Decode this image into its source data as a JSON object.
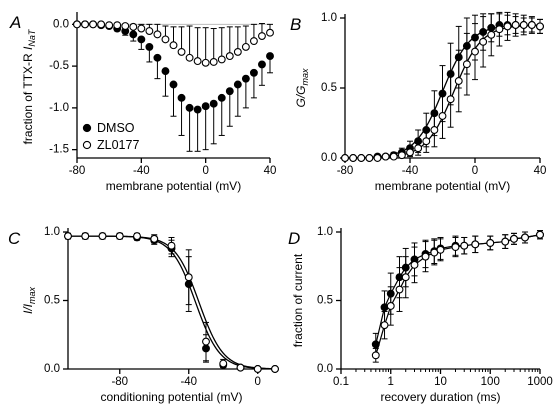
{
  "chart_data": [
    {
      "panel": "A",
      "type": "scatter",
      "ylabel_parts": [
        "fraction of TTX-R ",
        "I",
        "NaT"
      ],
      "xlabel": "membrane potential (mV)",
      "xlim": [
        -80,
        40
      ],
      "ylim": [
        -1.6,
        0.1
      ],
      "xticks": [
        -80,
        -40,
        0,
        40
      ],
      "yticks": [
        0.0,
        -0.5,
        -1.0,
        -1.5
      ],
      "xtick_labels": [
        "-80",
        "-40",
        "0",
        "40"
      ],
      "ytick_labels": [
        "0.0",
        "-0.5",
        "-1.0",
        "-1.5"
      ],
      "legend": {
        "position": "bottom-left",
        "entries": [
          "DMSO",
          "ZL0177"
        ]
      },
      "x": [
        -80,
        -75,
        -70,
        -65,
        -60,
        -55,
        -50,
        -45,
        -40,
        -35,
        -30,
        -25,
        -20,
        -15,
        -10,
        -5,
        0,
        5,
        10,
        15,
        20,
        25,
        30,
        35,
        40
      ],
      "series": [
        {
          "name": "DMSO",
          "marker": "filled",
          "errorbar_dir": "down",
          "values": [
            0.0,
            0.0,
            0.0,
            -0.01,
            -0.02,
            -0.05,
            -0.08,
            -0.12,
            -0.18,
            -0.27,
            -0.4,
            -0.56,
            -0.72,
            -0.88,
            -1.0,
            -1.02,
            -0.98,
            -0.95,
            -0.88,
            -0.8,
            -0.72,
            -0.65,
            -0.58,
            -0.48,
            -0.38
          ],
          "errors": [
            0.0,
            0.0,
            0.01,
            0.01,
            0.02,
            0.03,
            0.05,
            0.08,
            0.12,
            0.18,
            0.25,
            0.3,
            0.38,
            0.45,
            0.52,
            0.5,
            0.52,
            0.48,
            0.45,
            0.42,
            0.38,
            0.35,
            0.3,
            0.25,
            0.2
          ]
        },
        {
          "name": "ZL0177",
          "marker": "open",
          "errorbar_dir": "up",
          "values": [
            0.0,
            0.0,
            0.0,
            0.0,
            -0.01,
            -0.01,
            -0.02,
            -0.03,
            -0.05,
            -0.08,
            -0.12,
            -0.18,
            -0.25,
            -0.33,
            -0.4,
            -0.44,
            -0.46,
            -0.45,
            -0.42,
            -0.38,
            -0.33,
            -0.27,
            -0.2,
            -0.14,
            -0.1
          ],
          "errors": [
            0.0,
            0.0,
            0.0,
            0.01,
            0.01,
            0.02,
            0.02,
            0.03,
            0.05,
            0.08,
            0.12,
            0.16,
            0.22,
            0.3,
            0.38,
            0.4,
            0.42,
            0.4,
            0.38,
            0.35,
            0.3,
            0.25,
            0.2,
            0.15,
            0.1
          ]
        }
      ]
    },
    {
      "panel": "B",
      "type": "scatter",
      "ylabel_parts": [
        "G/G",
        "max"
      ],
      "xlabel": "membrane potential (mV)",
      "xlim": [
        -80,
        40
      ],
      "ylim": [
        0,
        1.0
      ],
      "xticks": [
        -80,
        -40,
        0,
        40
      ],
      "yticks": [
        0.0,
        0.5,
        1.0
      ],
      "xtick_labels": [
        "-80",
        "-40",
        "0",
        "40"
      ],
      "ytick_labels": [
        "0.0",
        "0.5",
        "1.0"
      ],
      "fits": [
        {
          "series": "DMSO",
          "v_half": -20,
          "slope": 8.5
        },
        {
          "series": "ZL0177",
          "v_half": -13,
          "slope": 8.5
        }
      ],
      "x": [
        -80,
        -75,
        -70,
        -65,
        -60,
        -55,
        -50,
        -45,
        -40,
        -35,
        -30,
        -25,
        -20,
        -15,
        -10,
        -5,
        0,
        5,
        10,
        15,
        20,
        25,
        30,
        35,
        40
      ],
      "series": [
        {
          "name": "DMSO",
          "marker": "filled",
          "values": [
            0.0,
            0.0,
            0.0,
            0.0,
            0.01,
            0.01,
            0.02,
            0.04,
            0.07,
            0.12,
            0.2,
            0.32,
            0.46,
            0.6,
            0.72,
            0.8,
            0.86,
            0.9,
            0.93,
            0.95,
            0.95,
            0.95,
            0.95,
            0.95,
            0.94
          ],
          "errors": [
            0.0,
            0.0,
            0.0,
            0.01,
            0.01,
            0.01,
            0.02,
            0.03,
            0.05,
            0.08,
            0.12,
            0.16,
            0.2,
            0.22,
            0.22,
            0.2,
            0.16,
            0.13,
            0.1,
            0.08,
            0.07,
            0.06,
            0.05,
            0.05,
            0.05
          ]
        },
        {
          "name": "ZL0177",
          "marker": "open",
          "values": [
            0.0,
            0.0,
            0.0,
            0.0,
            0.0,
            0.01,
            0.01,
            0.02,
            0.04,
            0.07,
            0.12,
            0.2,
            0.3,
            0.42,
            0.55,
            0.67,
            0.76,
            0.83,
            0.88,
            0.92,
            0.94,
            0.95,
            0.95,
            0.95,
            0.94
          ],
          "errors": [
            0.0,
            0.0,
            0.0,
            0.0,
            0.01,
            0.01,
            0.01,
            0.02,
            0.03,
            0.05,
            0.08,
            0.12,
            0.16,
            0.2,
            0.22,
            0.22,
            0.2,
            0.18,
            0.15,
            0.12,
            0.1,
            0.08,
            0.07,
            0.06,
            0.05
          ]
        }
      ]
    },
    {
      "panel": "C",
      "type": "scatter",
      "ylabel_parts": [
        "I/I",
        "max"
      ],
      "xlabel": "conditioning potential (mV)",
      "xlim": [
        -110,
        10
      ],
      "ylim": [
        0,
        1.0
      ],
      "xticks": [
        -80,
        -40,
        0
      ],
      "yticks": [
        0.0,
        0.5,
        1.0
      ],
      "xtick_labels": [
        "-80",
        "-40",
        "0"
      ],
      "ytick_labels": [
        "0.0",
        "0.5",
        "1.0"
      ],
      "fits": [
        {
          "series": "DMSO",
          "v_half": -36,
          "slope": 7.0
        },
        {
          "series": "ZL0177",
          "v_half": -34,
          "slope": 7.0
        }
      ],
      "x": [
        -110,
        -100,
        -90,
        -80,
        -70,
        -60,
        -50,
        -40,
        -30,
        -20,
        -10,
        0,
        10
      ],
      "series": [
        {
          "name": "DMSO",
          "marker": "filled",
          "values": [
            0.97,
            0.97,
            0.97,
            0.97,
            0.96,
            0.94,
            0.88,
            0.62,
            0.15,
            0.03,
            0.01,
            0.0,
            0.0
          ],
          "errors": [
            0.02,
            0.02,
            0.02,
            0.02,
            0.02,
            0.03,
            0.06,
            0.2,
            0.1,
            0.02,
            0.01,
            0.0,
            0.0
          ]
        },
        {
          "name": "ZL0177",
          "marker": "open",
          "values": [
            0.97,
            0.97,
            0.97,
            0.97,
            0.97,
            0.95,
            0.9,
            0.67,
            0.2,
            0.04,
            0.01,
            0.0,
            0.0
          ],
          "errors": [
            0.02,
            0.02,
            0.02,
            0.02,
            0.02,
            0.03,
            0.06,
            0.2,
            0.14,
            0.03,
            0.01,
            0.0,
            0.0
          ]
        }
      ]
    },
    {
      "panel": "D",
      "type": "scatter",
      "ylabel": "fraction of current",
      "xlabel": "recovery duration (ms)",
      "xscale": "log",
      "xlim": [
        0.1,
        1000
      ],
      "ylim": [
        0,
        1.0
      ],
      "xticks": [
        0.1,
        1,
        10,
        100,
        1000
      ],
      "yticks": [
        0.0,
        0.5,
        1.0
      ],
      "xtick_labels": [
        "0.1",
        "1",
        "10",
        "100",
        "1000"
      ],
      "ytick_labels": [
        "0.0",
        "0.5",
        "1.0"
      ],
      "x": [
        0.5,
        0.75,
        1,
        1.5,
        2,
        3,
        5,
        7.5,
        10,
        20,
        30,
        50,
        100,
        200,
        300,
        500,
        1000
      ],
      "series": [
        {
          "name": "DMSO",
          "marker": "filled",
          "values": [
            0.18,
            0.45,
            0.55,
            0.67,
            0.74,
            0.8,
            0.84,
            0.86,
            0.88,
            0.9,
            0.9,
            0.91,
            0.92,
            0.93,
            0.95,
            0.96,
            0.98
          ],
          "errors": [
            0.08,
            0.12,
            0.15,
            0.15,
            0.14,
            0.12,
            0.1,
            0.09,
            0.08,
            0.07,
            0.06,
            0.06,
            0.05,
            0.05,
            0.04,
            0.04,
            0.03
          ]
        },
        {
          "name": "ZL0177",
          "marker": "open",
          "values": [
            0.1,
            0.32,
            0.46,
            0.58,
            0.67,
            0.76,
            0.82,
            0.85,
            0.87,
            0.89,
            0.9,
            0.91,
            0.92,
            0.93,
            0.95,
            0.96,
            0.98
          ],
          "errors": [
            0.05,
            0.1,
            0.14,
            0.16,
            0.15,
            0.13,
            0.11,
            0.09,
            0.08,
            0.07,
            0.06,
            0.06,
            0.05,
            0.05,
            0.04,
            0.04,
            0.03
          ]
        }
      ]
    }
  ]
}
